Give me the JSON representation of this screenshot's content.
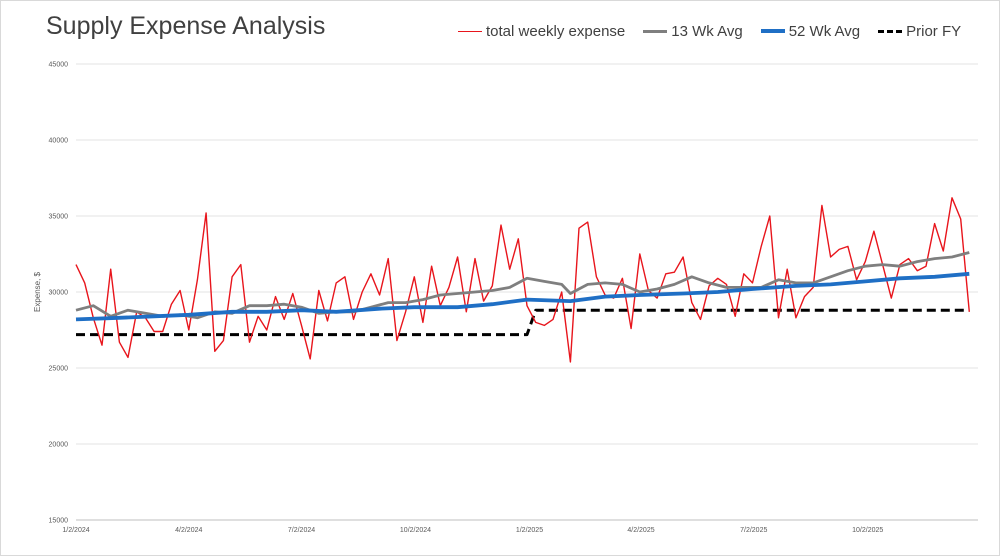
{
  "chart_data": {
    "type": "line",
    "title": "Supply Expense Analysis",
    "xlabel": "",
    "ylabel": "Expense, $",
    "ylim": [
      15000,
      45000
    ],
    "yticks": [
      15000,
      20000,
      25000,
      30000,
      35000,
      40000,
      45000
    ],
    "ytick_labels": [
      "15000",
      "20000",
      "25000",
      "30000",
      "35000",
      "40000",
      "45000"
    ],
    "xlim": [
      "2024-01-02",
      "2025-12-30"
    ],
    "xticks": [
      "2024-01-02",
      "2024-04-02",
      "2024-07-02",
      "2024-10-02",
      "2025-01-02",
      "2025-04-02",
      "2025-07-02",
      "2025-10-02"
    ],
    "xtick_labels": [
      "1/2/2024",
      "4/2/2024",
      "7/2/2024",
      "10/2/2024",
      "1/2/2025",
      "4/2/2025",
      "7/2/2025",
      "10/2/2025"
    ],
    "grid": "horizontal",
    "legend": "top-right",
    "series": [
      {
        "name": "total weekly expense",
        "color": "#e8151c",
        "style": "thin-solid",
        "points": [
          [
            "2024-01-02",
            31800
          ],
          [
            "2024-01-09",
            30600
          ],
          [
            "2024-01-16",
            28300
          ],
          [
            "2024-01-23",
            26500
          ],
          [
            "2024-01-30",
            31500
          ],
          [
            "2024-02-06",
            26700
          ],
          [
            "2024-02-13",
            25700
          ],
          [
            "2024-02-20",
            28700
          ],
          [
            "2024-02-27",
            28300
          ],
          [
            "2024-03-05",
            27400
          ],
          [
            "2024-03-12",
            27400
          ],
          [
            "2024-03-19",
            29200
          ],
          [
            "2024-03-26",
            30100
          ],
          [
            "2024-04-02",
            27500
          ],
          [
            "2024-04-09",
            30800
          ],
          [
            "2024-04-16",
            35200
          ],
          [
            "2024-04-23",
            26100
          ],
          [
            "2024-04-30",
            26800
          ],
          [
            "2024-05-07",
            31000
          ],
          [
            "2024-05-14",
            31800
          ],
          [
            "2024-05-21",
            26700
          ],
          [
            "2024-05-28",
            28400
          ],
          [
            "2024-06-04",
            27500
          ],
          [
            "2024-06-11",
            29700
          ],
          [
            "2024-06-18",
            28200
          ],
          [
            "2024-06-25",
            29900
          ],
          [
            "2024-07-02",
            27800
          ],
          [
            "2024-07-09",
            25600
          ],
          [
            "2024-07-16",
            30100
          ],
          [
            "2024-07-23",
            28100
          ],
          [
            "2024-07-30",
            30600
          ],
          [
            "2024-08-06",
            31000
          ],
          [
            "2024-08-13",
            28200
          ],
          [
            "2024-08-20",
            30000
          ],
          [
            "2024-08-27",
            31200
          ],
          [
            "2024-09-03",
            29800
          ],
          [
            "2024-09-10",
            32200
          ],
          [
            "2024-09-17",
            26800
          ],
          [
            "2024-09-24",
            28700
          ],
          [
            "2024-10-01",
            31000
          ],
          [
            "2024-10-08",
            28000
          ],
          [
            "2024-10-15",
            31700
          ],
          [
            "2024-10-22",
            29100
          ],
          [
            "2024-10-29",
            30300
          ],
          [
            "2024-11-05",
            32300
          ],
          [
            "2024-11-12",
            28700
          ],
          [
            "2024-11-19",
            32200
          ],
          [
            "2024-11-26",
            29400
          ],
          [
            "2024-12-03",
            30400
          ],
          [
            "2024-12-10",
            34400
          ],
          [
            "2024-12-17",
            31500
          ],
          [
            "2024-12-24",
            33500
          ],
          [
            "2024-12-31",
            29100
          ],
          [
            "2025-01-07",
            28000
          ],
          [
            "2025-01-14",
            27800
          ],
          [
            "2025-01-21",
            28200
          ],
          [
            "2025-01-28",
            30000
          ],
          [
            "2025-02-04",
            25400
          ],
          [
            "2025-02-11",
            34200
          ],
          [
            "2025-02-18",
            34600
          ],
          [
            "2025-02-25",
            31000
          ],
          [
            "2025-03-04",
            29800
          ],
          [
            "2025-03-11",
            29600
          ],
          [
            "2025-03-18",
            30900
          ],
          [
            "2025-03-25",
            27600
          ],
          [
            "2025-04-01",
            32500
          ],
          [
            "2025-04-08",
            30100
          ],
          [
            "2025-04-15",
            29600
          ],
          [
            "2025-04-22",
            31200
          ],
          [
            "2025-04-29",
            31300
          ],
          [
            "2025-05-06",
            32300
          ],
          [
            "2025-05-13",
            29300
          ],
          [
            "2025-05-20",
            28200
          ],
          [
            "2025-05-27",
            30400
          ],
          [
            "2025-06-03",
            30900
          ],
          [
            "2025-06-10",
            30500
          ],
          [
            "2025-06-17",
            28400
          ],
          [
            "2025-06-24",
            31200
          ],
          [
            "2025-07-01",
            30600
          ],
          [
            "2025-07-08",
            33000
          ],
          [
            "2025-07-15",
            35000
          ],
          [
            "2025-07-22",
            28300
          ],
          [
            "2025-07-29",
            31500
          ],
          [
            "2025-08-05",
            28300
          ],
          [
            "2025-08-12",
            29700
          ],
          [
            "2025-08-19",
            30300
          ],
          [
            "2025-08-26",
            35700
          ],
          [
            "2025-09-02",
            32300
          ],
          [
            "2025-09-09",
            32800
          ],
          [
            "2025-09-16",
            33000
          ],
          [
            "2025-09-23",
            30800
          ],
          [
            "2025-09-30",
            32000
          ],
          [
            "2025-10-07",
            34000
          ],
          [
            "2025-10-14",
            31800
          ],
          [
            "2025-10-21",
            29600
          ],
          [
            "2025-10-28",
            31800
          ],
          [
            "2025-11-04",
            32200
          ],
          [
            "2025-11-11",
            31400
          ],
          [
            "2025-11-18",
            31700
          ],
          [
            "2025-11-25",
            34500
          ],
          [
            "2025-12-02",
            32700
          ],
          [
            "2025-12-09",
            36200
          ],
          [
            "2025-12-16",
            34800
          ],
          [
            "2025-12-23",
            28700
          ]
        ]
      },
      {
        "name": "13 Wk Avg",
        "color": "#7f7f7f",
        "style": "medium-solid",
        "points": [
          [
            "2024-01-02",
            28800
          ],
          [
            "2024-01-16",
            29100
          ],
          [
            "2024-01-30",
            28400
          ],
          [
            "2024-02-13",
            28800
          ],
          [
            "2024-02-27",
            28600
          ],
          [
            "2024-03-12",
            28400
          ],
          [
            "2024-03-26",
            28500
          ],
          [
            "2024-04-09",
            28300
          ],
          [
            "2024-04-23",
            28700
          ],
          [
            "2024-05-07",
            28600
          ],
          [
            "2024-05-21",
            29100
          ],
          [
            "2024-06-04",
            29100
          ],
          [
            "2024-06-18",
            29200
          ],
          [
            "2024-07-02",
            29000
          ],
          [
            "2024-07-16",
            28600
          ],
          [
            "2024-07-30",
            28700
          ],
          [
            "2024-08-13",
            28700
          ],
          [
            "2024-08-27",
            29000
          ],
          [
            "2024-09-10",
            29300
          ],
          [
            "2024-09-24",
            29300
          ],
          [
            "2024-10-08",
            29500
          ],
          [
            "2024-10-22",
            29800
          ],
          [
            "2024-11-05",
            29900
          ],
          [
            "2024-11-19",
            30000
          ],
          [
            "2024-12-03",
            30100
          ],
          [
            "2024-12-17",
            30300
          ],
          [
            "2024-12-31",
            30900
          ],
          [
            "2025-01-14",
            30700
          ],
          [
            "2025-01-28",
            30500
          ],
          [
            "2025-02-04",
            29900
          ],
          [
            "2025-02-18",
            30500
          ],
          [
            "2025-03-04",
            30600
          ],
          [
            "2025-03-18",
            30500
          ],
          [
            "2025-04-01",
            30000
          ],
          [
            "2025-04-15",
            30200
          ],
          [
            "2025-04-29",
            30500
          ],
          [
            "2025-05-13",
            31000
          ],
          [
            "2025-05-27",
            30600
          ],
          [
            "2025-06-10",
            30300
          ],
          [
            "2025-06-24",
            30300
          ],
          [
            "2025-07-08",
            30300
          ],
          [
            "2025-07-22",
            30800
          ],
          [
            "2025-08-05",
            30600
          ],
          [
            "2025-08-19",
            30600
          ],
          [
            "2025-09-02",
            31000
          ],
          [
            "2025-09-16",
            31400
          ],
          [
            "2025-09-30",
            31700
          ],
          [
            "2025-10-14",
            31800
          ],
          [
            "2025-10-28",
            31700
          ],
          [
            "2025-11-11",
            32000
          ],
          [
            "2025-11-25",
            32200
          ],
          [
            "2025-12-09",
            32300
          ],
          [
            "2025-12-23",
            32600
          ]
        ]
      },
      {
        "name": "52 Wk Avg",
        "color": "#1f6fc5",
        "style": "thick-solid",
        "points": [
          [
            "2024-01-02",
            28200
          ],
          [
            "2024-02-06",
            28300
          ],
          [
            "2024-03-05",
            28400
          ],
          [
            "2024-04-02",
            28500
          ],
          [
            "2024-05-07",
            28700
          ],
          [
            "2024-06-04",
            28700
          ],
          [
            "2024-07-02",
            28800
          ],
          [
            "2024-07-30",
            28700
          ],
          [
            "2024-09-03",
            28900
          ],
          [
            "2024-10-01",
            29000
          ],
          [
            "2024-11-05",
            29000
          ],
          [
            "2024-12-03",
            29200
          ],
          [
            "2024-12-31",
            29500
          ],
          [
            "2025-02-04",
            29400
          ],
          [
            "2025-03-04",
            29700
          ],
          [
            "2025-04-01",
            29800
          ],
          [
            "2025-05-06",
            29900
          ],
          [
            "2025-06-03",
            30000
          ],
          [
            "2025-07-01",
            30200
          ],
          [
            "2025-08-05",
            30400
          ],
          [
            "2025-09-02",
            30500
          ],
          [
            "2025-09-30",
            30700
          ],
          [
            "2025-10-28",
            30900
          ],
          [
            "2025-11-25",
            31000
          ],
          [
            "2025-12-23",
            31200
          ]
        ]
      },
      {
        "name": "Prior FY",
        "color": "#000000",
        "style": "thick-dashed",
        "points": [
          [
            "2024-01-02",
            27200
          ],
          [
            "2024-12-31",
            27200
          ],
          [
            "2025-01-07",
            28800
          ],
          [
            "2025-12-23",
            28800
          ]
        ]
      }
    ]
  }
}
